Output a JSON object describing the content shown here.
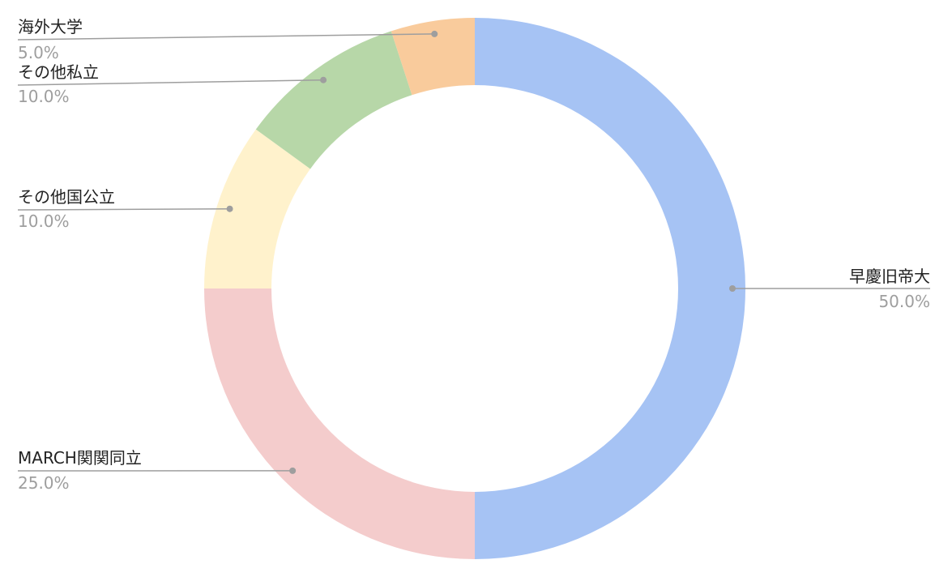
{
  "chart_data": {
    "type": "pie",
    "donut": true,
    "title": "",
    "categories": [
      "早慶旧帝大",
      "MARCH関関同立",
      "その他国公立",
      "その他私立",
      "海外大学"
    ],
    "values": [
      50.0,
      25.0,
      10.0,
      10.0,
      5.0
    ],
    "value_labels": [
      "50.0%",
      "25.0%",
      "10.0%",
      "10.0%",
      "5.0%"
    ],
    "colors": [
      "#a6c3f4",
      "#f4cccc",
      "#fff2cc",
      "#b7d7a8",
      "#f9cb9c"
    ],
    "start_angle": "12 o'clock",
    "direction": "clockwise",
    "legend": "none",
    "label_color": "#222222",
    "value_label_color": "#9e9e9e",
    "leader_color": "#9e9e9e"
  }
}
